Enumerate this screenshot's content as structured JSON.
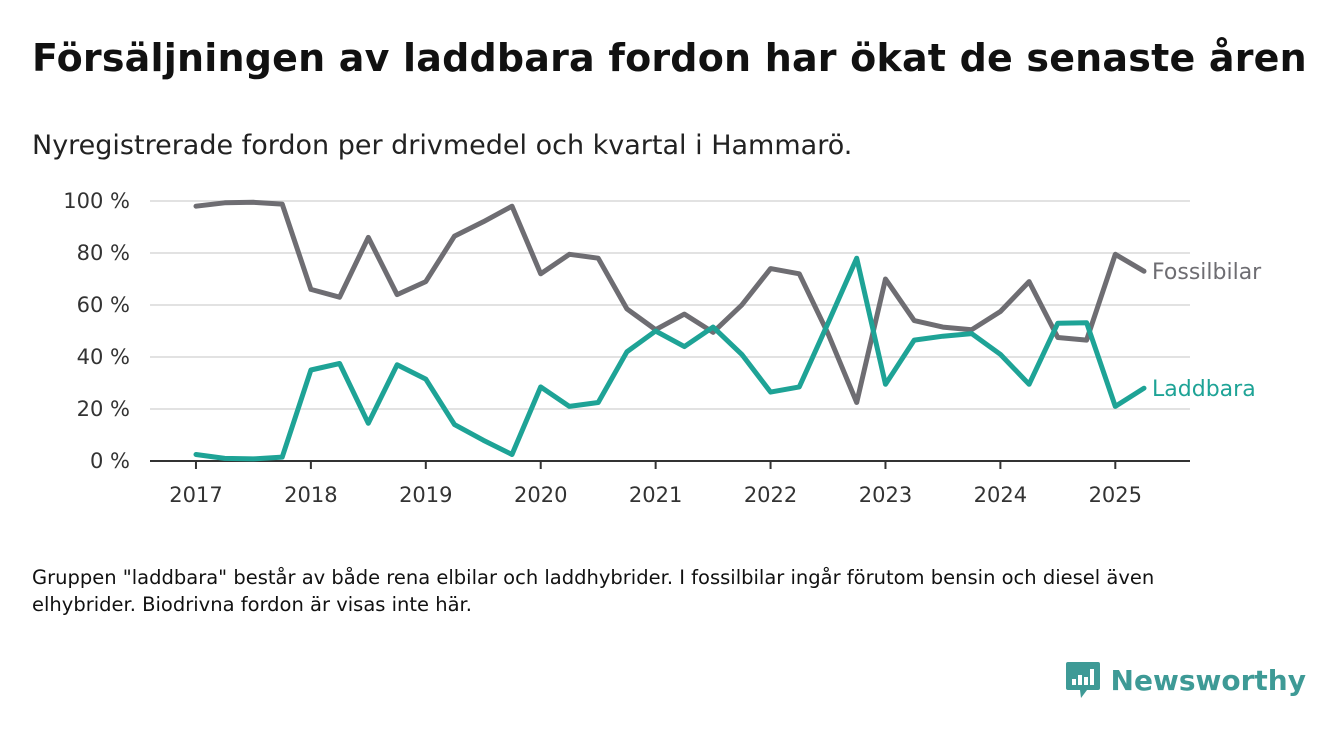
{
  "title": "Försäljningen av laddbara fordon har ökat de senaste åren",
  "subtitle": "Nyregistrerade fordon per drivmedel och kvartal i Hammarö.",
  "note": "Gruppen \"laddbara\" består av både rena elbilar och laddhybrider. I fossilbilar ingår förutom bensin och diesel även elhybrider. Biodrivna fordon är visas inte här.",
  "brand": {
    "name": "Newsworthy",
    "icon": "newsworthy-logo-icon",
    "color": "#3e9a96"
  },
  "chart_data": {
    "type": "line",
    "x": [
      2017.0,
      2017.25,
      2017.5,
      2017.75,
      2018.0,
      2018.25,
      2018.5,
      2018.75,
      2019.0,
      2019.25,
      2019.5,
      2019.75,
      2020.0,
      2020.25,
      2020.5,
      2020.75,
      2021.0,
      2021.25,
      2021.5,
      2021.75,
      2022.0,
      2022.25,
      2022.5,
      2022.75,
      2023.0,
      2023.25,
      2023.5,
      2023.75,
      2024.0,
      2024.25,
      2024.5,
      2024.75,
      2025.0,
      2025.25
    ],
    "x_ticks": [
      2017,
      2018,
      2019,
      2020,
      2021,
      2022,
      2023,
      2024,
      2025
    ],
    "x_tick_labels": [
      "2017",
      "2018",
      "2019",
      "2020",
      "2021",
      "2022",
      "2023",
      "2024",
      "2025"
    ],
    "xlim": [
      2016.6,
      2025.65
    ],
    "y_ticks": [
      0,
      20,
      40,
      60,
      80,
      100
    ],
    "y_tick_labels": [
      "0 %",
      "20 %",
      "40 %",
      "60 %",
      "80 %",
      "100 %"
    ],
    "ylim": [
      0,
      100
    ],
    "grid": true,
    "series": [
      {
        "name": "Fossilbilar",
        "color": "#6e6d72",
        "values": [
          98,
          99.3,
          99.5,
          98.8,
          66,
          63,
          86,
          64,
          69,
          86.5,
          92,
          98,
          72,
          79.5,
          78,
          58.5,
          50.5,
          56.5,
          49.5,
          60,
          74,
          72,
          49,
          22.5,
          70,
          54,
          51.5,
          50.5,
          57.5,
          69,
          47.5,
          46.5,
          79.5,
          73
        ]
      },
      {
        "name": "Laddbara",
        "color": "#1ea396",
        "values": [
          2.5,
          1,
          0.8,
          1.5,
          35,
          37.5,
          14.5,
          37,
          31.5,
          14,
          8,
          2.5,
          28.5,
          21,
          22.5,
          42,
          50,
          44,
          51.5,
          41,
          26.5,
          28.5,
          53,
          78,
          29.5,
          46.5,
          48,
          49,
          41,
          29.5,
          53,
          53.2,
          21,
          28
        ]
      }
    ]
  }
}
